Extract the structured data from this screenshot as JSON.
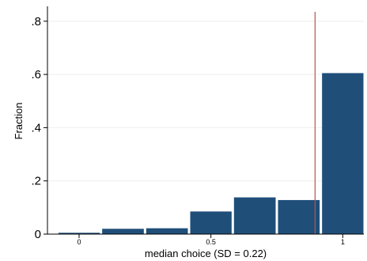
{
  "chart_data": {
    "type": "bar",
    "title": "",
    "xlabel": "median choice (SD = 0.22)",
    "ylabel": "Fraction",
    "xlim": [
      -0.12,
      1.08
    ],
    "ylim": [
      0,
      0.85
    ],
    "x_ticks": [
      {
        "value": 0,
        "label": "0"
      },
      {
        "value": 0.5,
        "label": "0.5"
      },
      {
        "value": 1,
        "label": "1"
      }
    ],
    "y_ticks": [
      {
        "value": 0,
        "label": "0"
      },
      {
        "value": 0.2,
        "label": ".2"
      },
      {
        "value": 0.4,
        "label": ".4"
      },
      {
        "value": 0.6,
        "label": ".6"
      },
      {
        "value": 0.8,
        "label": ".8"
      }
    ],
    "bins": [
      {
        "start": -0.083,
        "end": 0.083,
        "value": 0.005
      },
      {
        "start": 0.083,
        "end": 0.25,
        "value": 0.02
      },
      {
        "start": 0.25,
        "end": 0.417,
        "value": 0.022
      },
      {
        "start": 0.417,
        "end": 0.583,
        "value": 0.085
      },
      {
        "start": 0.583,
        "end": 0.75,
        "value": 0.138
      },
      {
        "start": 0.75,
        "end": 0.917,
        "value": 0.128
      },
      {
        "start": 0.917,
        "end": 1.083,
        "value": 0.605
      }
    ],
    "reference_line_x": 0.895,
    "grid": true,
    "colors": {
      "bar": "#1f4e79",
      "reference_line": "#b5554f",
      "grid": "#eeeeee",
      "axis": "#000000"
    }
  }
}
